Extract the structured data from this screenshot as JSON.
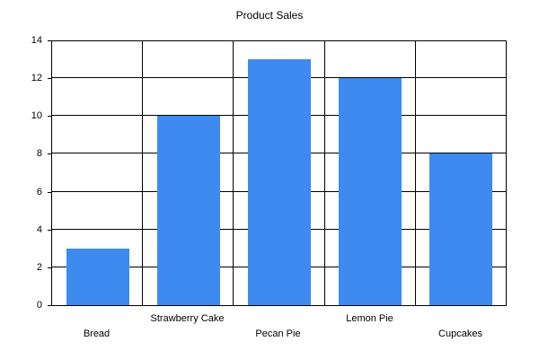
{
  "chart_data": {
    "type": "bar",
    "title": "Product Sales",
    "categories": [
      "Bread",
      "Strawberry Cake",
      "Pecan Pie",
      "Lemon Pie",
      "Cupcakes"
    ],
    "values": [
      3,
      10,
      13,
      12,
      8
    ],
    "xlabel": "",
    "ylabel": "",
    "ylim": [
      0,
      14
    ],
    "ytick_step": 2,
    "grid": true,
    "legend": "none",
    "bar_color": "#3D8BF0",
    "grid_color": "#000000",
    "axis_color": "#000000",
    "background": "#FFFFFF"
  }
}
